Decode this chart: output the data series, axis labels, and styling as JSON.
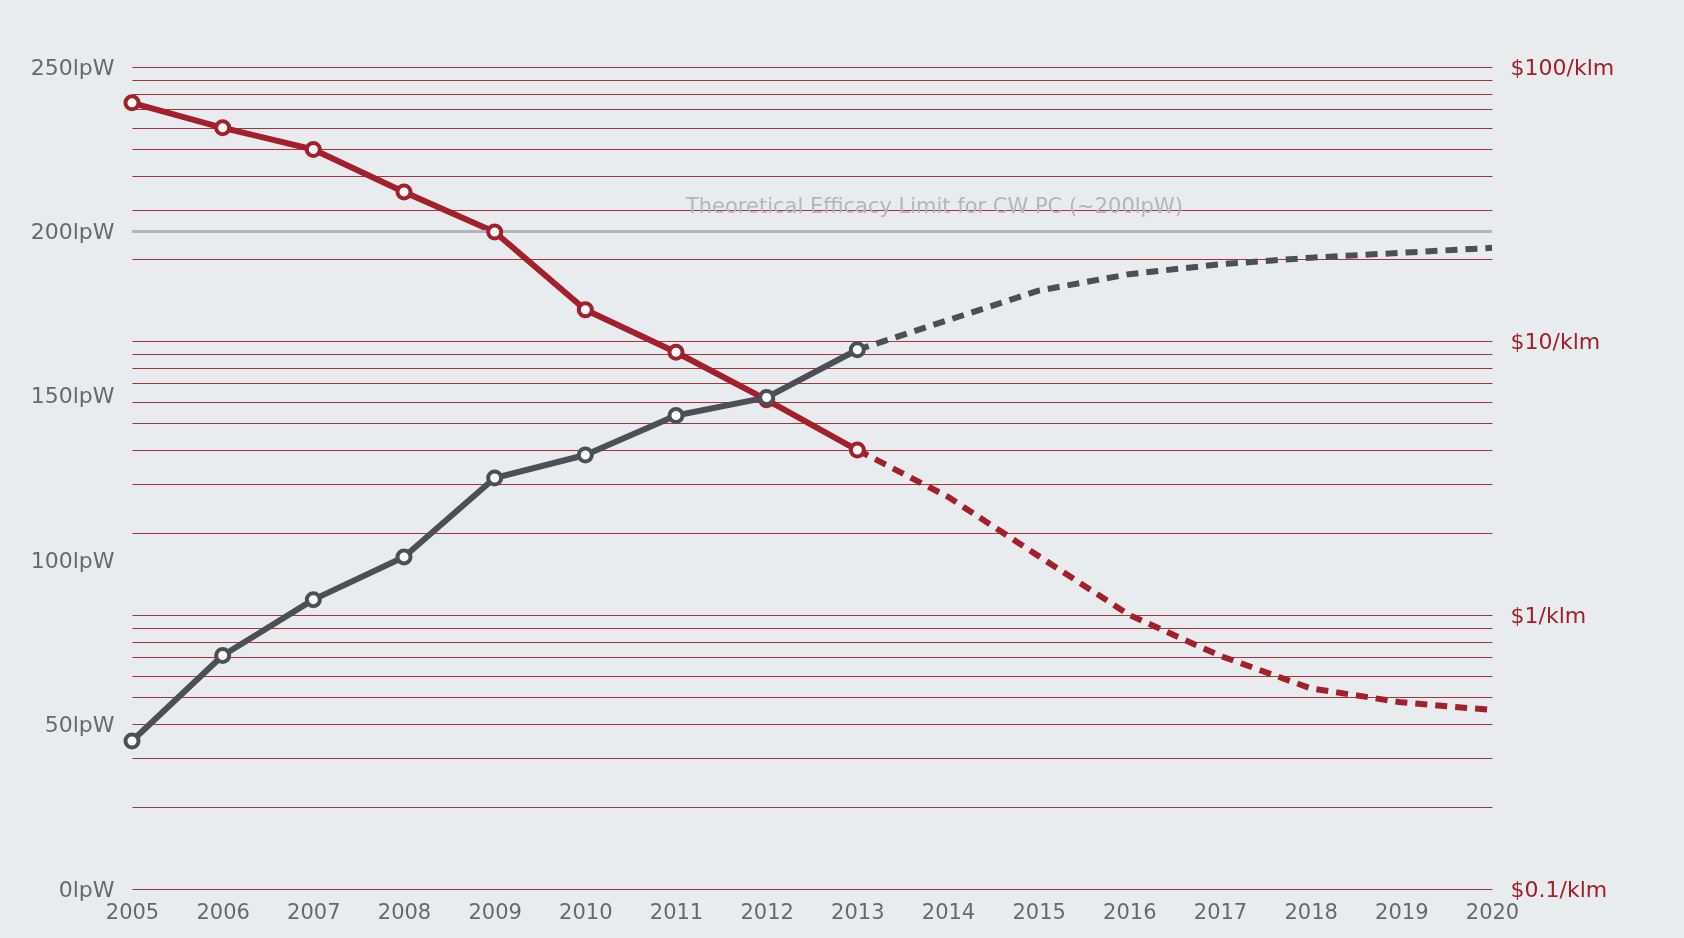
{
  "chart_data": {
    "type": "line",
    "x": [
      2005,
      2006,
      2007,
      2008,
      2009,
      2010,
      2011,
      2012,
      2013
    ],
    "xlim": [
      2005,
      2020
    ],
    "xticks": [
      2005,
      2006,
      2007,
      2008,
      2009,
      2010,
      2011,
      2012,
      2013,
      2014,
      2015,
      2016,
      2017,
      2018,
      2019,
      2020
    ],
    "ylim": [
      0,
      250
    ],
    "yticks": [
      {
        "value": 0,
        "label": "0lpW"
      },
      {
        "value": 50,
        "label": "50lpW"
      },
      {
        "value": 100,
        "label": "100lpW"
      },
      {
        "value": 150,
        "label": "150lpW"
      },
      {
        "value": 200,
        "label": "200lpW"
      },
      {
        "value": 250,
        "label": "250lpW"
      }
    ],
    "y2lim": [
      0.1,
      100
    ],
    "y2ticks": [
      {
        "value": 0.1,
        "label": "$0.1/klm"
      },
      {
        "value": 0.2,
        "label": null
      },
      {
        "value": 0.3,
        "label": null
      },
      {
        "value": 0.4,
        "label": null
      },
      {
        "value": 0.5,
        "label": null
      },
      {
        "value": 0.6,
        "label": null
      },
      {
        "value": 0.7,
        "label": null
      },
      {
        "value": 0.8,
        "label": null
      },
      {
        "value": 0.9,
        "label": null
      },
      {
        "value": 1,
        "label": "$1/klm"
      },
      {
        "value": 2,
        "label": null
      },
      {
        "value": 3,
        "label": null
      },
      {
        "value": 4,
        "label": null
      },
      {
        "value": 5,
        "label": null
      },
      {
        "value": 6,
        "label": null
      },
      {
        "value": 7,
        "label": null
      },
      {
        "value": 8,
        "label": null
      },
      {
        "value": 9,
        "label": null
      },
      {
        "value": 10,
        "label": "$10/klm"
      },
      {
        "value": 20,
        "label": null
      },
      {
        "value": 30,
        "label": null
      },
      {
        "value": 40,
        "label": null
      },
      {
        "value": 50,
        "label": null
      },
      {
        "value": 60,
        "label": null
      },
      {
        "value": 70,
        "label": null
      },
      {
        "value": 80,
        "label": null
      },
      {
        "value": 90,
        "label": null
      },
      {
        "value": 100,
        "label": "$100/klm"
      }
    ],
    "log": "y2",
    "grid": "y2",
    "series": [
      {
        "color": "#4b5057",
        "values": [
          45,
          71,
          88,
          101,
          125,
          132,
          144,
          149.5,
          164
        ],
        "marker": "circle",
        "line_style": "solid"
      },
      {
        "color": "#a3202a",
        "axis": "y2",
        "values": [
          74,
          60,
          50,
          35,
          25,
          13,
          9.1,
          6.1,
          4
        ],
        "marker": "circle",
        "line_style": "solid"
      },
      {
        "color": "#4b5057",
        "x": [
          2013,
          2014,
          2015,
          2016,
          2017,
          2018,
          2019,
          2020
        ],
        "values": [
          164,
          173,
          182,
          187,
          190,
          192,
          193.5,
          195
        ],
        "marker": "none",
        "line_style": "dashed"
      },
      {
        "color": "#a3202a",
        "axis": "y2",
        "x": [
          2013,
          2014,
          2015,
          2016,
          2017,
          2018,
          2019,
          2020
        ],
        "values": [
          4,
          2.7,
          1.64,
          1,
          0.71,
          0.54,
          0.48,
          0.45
        ],
        "marker": "none",
        "line_style": "dashed"
      }
    ],
    "ref_lines": [
      {
        "axis": "y",
        "value": 200,
        "label": "Theoretical Efficacy Limit for CW PC (~200lpW)",
        "color": "#b3b6b9"
      }
    ]
  }
}
